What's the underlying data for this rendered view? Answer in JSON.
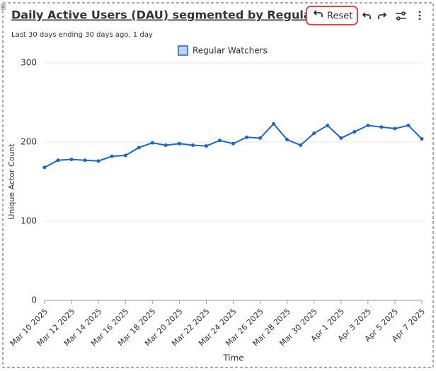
{
  "toolbar": {
    "reset": "Reset"
  },
  "chart_data": {
    "type": "line",
    "title": "Daily Active Users (DAU) segmented by Regular...",
    "subtitle": "Last 30 days ending 30 days ago, 1 day",
    "x_label": "Time",
    "y_label": "Unique Actor Count",
    "categories": [
      "Mar 10 2025",
      null,
      "Mar 12 2025",
      null,
      "Mar 14 2025",
      null,
      "Mar 16 2025",
      null,
      "Mar 18 2025",
      null,
      "Mar 20 2025",
      null,
      "Mar 22 2025",
      null,
      "Mar 24 2025",
      null,
      "Mar 26 2025",
      null,
      "Mar 28 2025",
      null,
      "Mar 30 2025",
      null,
      "Apr 1 2025",
      null,
      "Apr 3 2025",
      null,
      "Apr 5 2025",
      null,
      "Apr 7 2025"
    ],
    "series": [
      {
        "name": "Regular Watchers",
        "color": "#1a66c8",
        "values": [
          168,
          177,
          178,
          177,
          176,
          182,
          183,
          193,
          199,
          196,
          198,
          196,
          195,
          202,
          198,
          206,
          205,
          223,
          203,
          196,
          211,
          221,
          205,
          213,
          221,
          219,
          217,
          221,
          204
        ]
      }
    ],
    "ylim": [
      0,
      300
    ],
    "yticks": [
      0,
      100,
      200,
      300
    ],
    "grid": true,
    "legend": "top"
  }
}
